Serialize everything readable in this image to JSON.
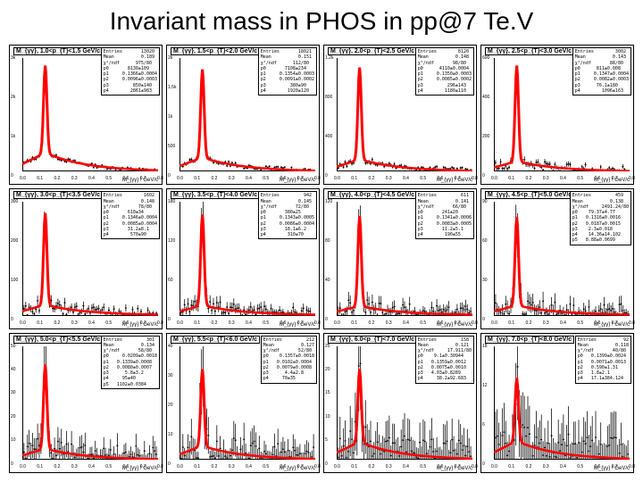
{
  "title": "Invariant mass in PHOS in pp@7 Te.V",
  "title_fontsize": 28,
  "title_color": "#000000",
  "layout": {
    "rows": 3,
    "cols": 4,
    "gap": 4
  },
  "colors": {
    "background": "#ffffff",
    "axis": "#000000",
    "data_points": "#000000",
    "fit_line": "#ff0000",
    "frame": "#000000"
  },
  "fontsize": {
    "panel_title": 7,
    "stats": 5,
    "ticks": 5,
    "xlabel": 6
  },
  "xlabel": "M_{γγ} ! GeV/c",
  "xlim": [
    0,
    0.8
  ],
  "xticks": [
    0,
    0.1,
    0.2,
    0.3,
    0.4,
    0.5,
    0.6,
    0.7,
    0.8
  ],
  "line_width_fit": 2,
  "marker_size": 1.5,
  "panels": [
    {
      "title": "M_{γγ}, 1.0<p_{T}<1.5 GeV/c",
      "ymax": 3000,
      "yticks": [
        0,
        1000,
        2000,
        3000
      ],
      "peak_x": 0.135,
      "peak_y": 2800,
      "bg_level": 500,
      "noise_amp": 0.03,
      "stats": "Entries       13020\nMean          0.189\nχ²/ndf      975/80\np0       8130±109\np1     0.1366±0.0004\np2     0.0096±0.0003\np3         850±140\np4        2861±983"
    },
    {
      "title": "M_{γγ}, 1.5<p_{T}<2.0 GeV/c",
      "ymax": 2000,
      "yticks": [
        0,
        500,
        1000,
        1500,
        2000
      ],
      "peak_x": 0.135,
      "peak_y": 1800,
      "bg_level": 250,
      "noise_amp": 0.04,
      "stats": "Entries       18021\nMean          0.151\nχ²/ndf      112/80\np0       7108±234\np1     0.1354±0.0003\np2     0.0091±0.0002\np3         380±90\np4        1920±120"
    },
    {
      "title": "M_{γγ}, 2.0<p_{T}<2.5 GeV/c",
      "ymax": 1200,
      "yticks": [
        0,
        400,
        800,
        1200
      ],
      "peak_x": 0.135,
      "peak_y": 1100,
      "bg_level": 130,
      "noise_amp": 0.05,
      "stats": "Entries        8120\nMean          0.148\nχ²/ndf       98/80\np0      4110±0.0004\np1     0.1350±0.0003\np2     0.0085±0.0002\np3         296±143\np4        1180±110"
    },
    {
      "title": "M_{γγ}, 2.5<p_{T}<3.0 GeV/c",
      "ymax": 600,
      "yticks": [
        0,
        200,
        400,
        600
      ],
      "peak_x": 0.135,
      "peak_y": 560,
      "bg_level": 55,
      "noise_amp": 0.08,
      "stats": "Entries        3002\nMean          0.143\nχ²/ndf       88/80\np0      811±0.008\np1     0.1347±0.0004\np2     0.0082±0.0003\np3      76.1±180\np4        1096±163"
    },
    {
      "title": "M_{γγ}, 3.0<p_{T}<3.5 GeV/c",
      "ymax": 300,
      "yticks": [
        0,
        100,
        200,
        300
      ],
      "peak_x": 0.135,
      "peak_y": 270,
      "bg_level": 28,
      "noise_amp": 0.1,
      "stats": "Entries        1602\nMean          0.148\nχ²/ndf       78/80\np0       610±34\np1     0.1346±0.0004\np2     0.0085±0.0004\np3       31.2±8.1\np4        570±90"
    },
    {
      "title": "M_{γγ}, 3.5<p_{T}<4.0 GeV/c",
      "ymax": 180,
      "yticks": [
        0,
        60,
        120,
        180
      ],
      "peak_x": 0.135,
      "peak_y": 160,
      "bg_level": 16,
      "noise_amp": 0.12,
      "stats": "Entries         942\nMean          0.145\nχ²/ndf       72/80\np0       380±25\np1     0.1343±0.0005\np2     0.0086±0.0004\np3       18.1±6.2\np4        310±70"
    },
    {
      "title": "M_{γγ}, 4.0<p_{T}<4.5 GeV/c",
      "ymax": 120,
      "yticks": [
        0,
        40,
        80,
        120
      ],
      "peak_x": 0.135,
      "peak_y": 105,
      "bg_level": 10,
      "noise_amp": 0.15,
      "stats": "Entries         611\nMean          0.141\nχ²/ndf       66/80\np0       241±20\np1     0.1341±0.0006\np2     0.0083±0.0005\np3       11.2±5.1\np4        190±55"
    },
    {
      "title": "M_{γγ}, 4.5<p_{T}<5.0 GeV/c",
      "ymax": 90,
      "yticks": [
        0,
        30,
        60,
        90
      ],
      "peak_x": 0.135,
      "peak_y": 78,
      "bg_level": 8,
      "noise_amp": 0.18,
      "stats": "Entries         459\nMean          0.138\nχ²/ndf     2491.24/80\np0    79.37±4.77\np1   0.1316±0.0016\np2   0.0187±0.0015\np3    2.3±0.018\np4    14.36±14.102\np5   8.88±0.0699"
    },
    {
      "title": "M_{γγ}, 5.0<p_{T}<5.5 GeV/c",
      "ymax": 50,
      "yticks": [
        0,
        10,
        20,
        30,
        40,
        50
      ],
      "peak_x": 0.135,
      "peak_y": 42,
      "bg_level": 5,
      "noise_amp": 0.22,
      "stats": "Entries         301\nMean          0.134\nχ²/ndf       58/80\np0     0.0209±0.0018\np1   0.1339±0.0008\np2   0.0080±0.0007\np3      5.8±3.2\np4     95±40\np5   1102±0.0384"
    },
    {
      "title": "M_{γγ}, 5.5<p_{T}<6.0 GeV/c",
      "ymax": 40,
      "yticks": [
        0,
        10,
        20,
        30,
        40
      ],
      "peak_x": 0.135,
      "peak_y": 32,
      "bg_level": 5,
      "noise_amp": 0.28,
      "stats": "Entries         212\nMean          0.127\nχ²/ndf       52/80\np0    0.1357±0.0018\np1   0.0102±0.0004\np2   0.0079±0.0008\np3      4.4±2.8\np4     70±35"
    },
    {
      "title": "M_{γγ}, 6.0<p_{T}<7.0 GeV/c",
      "ymax": 25,
      "yticks": [
        0,
        5,
        10,
        15,
        20,
        25
      ],
      "peak_x": 0.135,
      "peak_y": 20,
      "bg_level": 4,
      "noise_amp": 0.35,
      "stats": "Entries         158\nMean          0.121\nχ²/ndf     17.911/80\np0    9.1±0.30944\np1   0.1359±0.0012\np2   0.0075±0.0010\np3   4.03±0.8289\np4     38.2±92.683"
    },
    {
      "title": "M_{γγ}, 7.0<p_{T}<8.0 GeV/c",
      "ymax": 18,
      "yticks": [
        0,
        6,
        12,
        18
      ],
      "peak_x": 0.135,
      "peak_y": 13,
      "bg_level": 3,
      "noise_amp": 0.45,
      "stats": "Entries          92\nMean          0.118\nχ²/ndf       40/80\np0   0.1399±0.0024\np1   0.0071±0.0013\np2   0.590±1.31\np3   1.8±2.1\np4   17.1±384.124"
    }
  ]
}
